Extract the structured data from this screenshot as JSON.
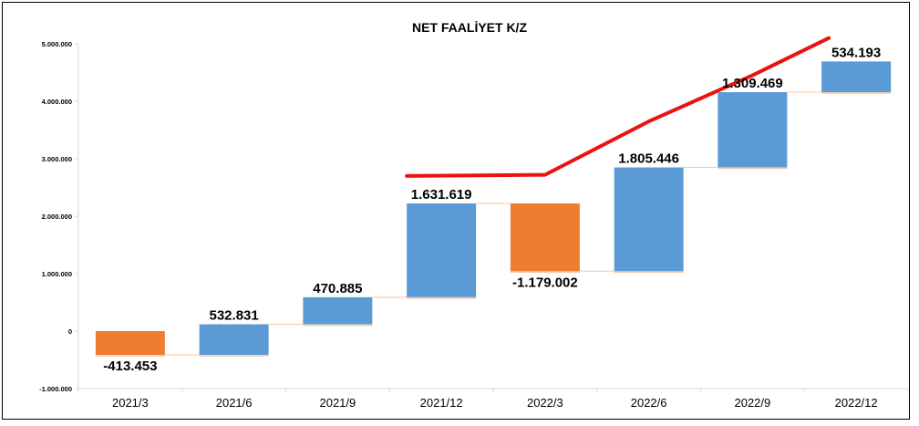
{
  "chart_data": {
    "type": "bar",
    "subtype": "waterfall",
    "title": "NET FAALİYET K/Z",
    "categories": [
      "2021/3",
      "2021/6",
      "2021/9",
      "2021/12",
      "2022/3",
      "2022/6",
      "2022/9",
      "2022/12"
    ],
    "values": [
      -413453,
      532831,
      470885,
      1631619,
      -1179002,
      1805446,
      1309469,
      534193
    ],
    "value_labels": [
      "-413.453",
      "532.831",
      "470.885",
      "1.631.619",
      "-1.179.002",
      "1.805.446",
      "1.309.469",
      "534.193"
    ],
    "ylim": [
      -1000000,
      5000000
    ],
    "yticks": [
      -1000000,
      0,
      1000000,
      2000000,
      3000000,
      4000000,
      5000000
    ],
    "ytick_labels": [
      "-1.000.000",
      "0",
      "1.000.000",
      "2.000.000",
      "3.000.000",
      "4.000.000",
      "5.000.000"
    ],
    "trend_line": {
      "points": [
        {
          "x": "2021/12",
          "y": 2700000
        },
        {
          "x": "2022/3",
          "y": 2720000
        },
        {
          "x": "2022/6",
          "y": 3650000
        },
        {
          "x": "2022/9",
          "y": 4450000
        },
        {
          "x": "2022/12",
          "y": 5100000
        }
      ],
      "color": "#ee1111"
    },
    "colors": {
      "increase": "#5b9bd5",
      "decrease": "#ed7d31"
    },
    "grid": false,
    "legend": "none"
  }
}
